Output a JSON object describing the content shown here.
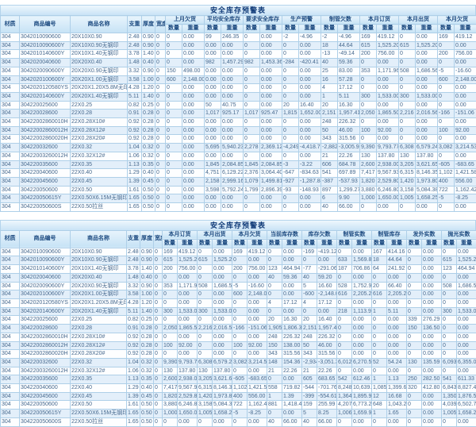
{
  "colors": {
    "accent_blue": "#c9e3f6",
    "border_blue": "#aecfe8",
    "text_blue": "#47698e",
    "header_text": "#1c4a80",
    "alert_red": "#cf2118",
    "stripe": "#e3effa"
  },
  "top_table": {
    "title": "安全库存预警表",
    "left_headers": [
      "材质",
      "商品编号",
      "商品名称",
      "支重",
      "厚度",
      "宽度"
    ],
    "group_headers": [
      "上月欠货",
      "平均安全库存",
      "要求安全库存",
      "生产预警",
      "制管欠数",
      "本月订货",
      "本月出货",
      "本月欠货"
    ],
    "sub_headers": [
      "数量",
      "重量"
    ],
    "red_rules": {
      "nonzero_red_cols": [
        12,
        13
      ],
      "negative_red_cols": [
        14,
        15
      ]
    },
    "rows": [
      [
        "304",
        "3042010090600",
        "20X10X0.90",
        "2.48",
        "0.90",
        "0",
        "0",
        "0.00",
        "99",
        "246.35",
        "0",
        "0.00",
        "-2",
        "-4.96",
        "-2",
        "-4.96",
        "169",
        "419.12",
        "0",
        "0.00",
        "169",
        "419.12"
      ],
      [
        "304",
        "3042010090600Y",
        "20X10X0.90无钢印",
        "2.48",
        "0.90",
        "0",
        "0",
        "0.00",
        "0.00",
        "0.00",
        "0",
        "0.00",
        "0",
        "0.00",
        "18",
        "44.64",
        "615",
        "1,525.20",
        "615",
        "1,525.20",
        "0",
        "0.00"
      ],
      [
        "304",
        "3042010140600Y",
        "20X10X1.40无钢印",
        "3.78",
        "1.40",
        "0",
        "0",
        "0.00",
        "0.00",
        "0.00",
        "0",
        "0.00",
        "0",
        "0.00",
        "-13",
        "-49.14",
        "200",
        "756.00",
        "0",
        "0.00",
        "200",
        "756.00"
      ],
      [
        "304",
        "3042020040600",
        "20X20X0.40",
        "1.48",
        "0.40",
        "0",
        "0",
        "0.00",
        "982",
        "1,457.29",
        "982",
        "1,453.36",
        "-284",
        "-420.41",
        "40",
        "59.36",
        "0",
        "0.00",
        "0",
        "0.00",
        "0",
        "0.00"
      ],
      [
        "304",
        "3042020090600Y",
        "20X20X0.90无钢印",
        "3.32",
        "0.90",
        "0",
        "150",
        "498.00",
        "0.00",
        "0.00",
        "0",
        "0.00",
        "0",
        "0.00",
        "25",
        "83.00",
        "353",
        "1,171.96",
        "508",
        "1,686.56",
        "-5",
        "-16.60"
      ],
      [
        "304",
        "3042020100600Y",
        "20X20X1.00无钢印",
        "3.58",
        "1.00",
        "0",
        "600",
        "2,148.00",
        "0.00",
        "0.00",
        "0",
        "0.00",
        "0",
        "0.00",
        "16",
        "57.28",
        "0",
        "0.00",
        "0",
        "0.00",
        "600",
        "2,148.00"
      ],
      [
        "304",
        "3042020120580YS",
        "20X20X1.20X5.8M无印拉丝",
        "4.28",
        "1.20",
        "0",
        "0",
        "0.00",
        "0.00",
        "0.00",
        "0",
        "0.00",
        "0",
        "0.00",
        "4",
        "17.12",
        "0",
        "0.00",
        "0",
        "0.00",
        "0",
        "0.00"
      ],
      [
        "304",
        "3042020140600Y",
        "20X20X1.40无钢印",
        "5.11",
        "1.40",
        "0",
        "0",
        "0.00",
        "0.00",
        "0.00",
        "0",
        "0.00",
        "0",
        "0.00",
        "1",
        "5.11",
        "300",
        "1,533.00",
        "300",
        "1,533.00",
        "0",
        "0.00"
      ],
      [
        "304",
        "304220025600",
        "22X0.25",
        "0.82",
        "0.25",
        "0",
        "0",
        "0.00",
        "50",
        "40.75",
        "0",
        "0.00",
        "20",
        "16.40",
        "20",
        "16.30",
        "0",
        "0.00",
        "0",
        "0.00",
        "0",
        "0.00"
      ],
      [
        "304",
        "304220028600",
        "22X0.28",
        "0.91",
        "0.28",
        "0",
        "0",
        "0.00",
        "1,017",
        "925.17",
        "1,017",
        "925.47",
        "1,815",
        "1,652.00",
        "2,151",
        "1,957.41",
        "2,050",
        "1,865.50",
        "2,216",
        "2,016.56",
        "-166",
        "-151.06"
      ],
      [
        "304",
        "30422002860010H",
        "22X0.28X10#",
        "0.92",
        "0.28",
        "0",
        "0",
        "0.00",
        "0.00",
        "0.00",
        "0",
        "0.00",
        "0",
        "0.00",
        "248",
        "226.32",
        "0",
        "0.00",
        "0",
        "0.00",
        "0",
        "0.00"
      ],
      [
        "304",
        "30422002860012H",
        "22X0.28X12#",
        "0.92",
        "0.28",
        "0",
        "0",
        "0.00",
        "0.00",
        "0.00",
        "0",
        "0.00",
        "0",
        "0.00",
        "50",
        "46.00",
        "100",
        "92.00",
        "0",
        "0.00",
        "100",
        "92.00"
      ],
      [
        "304",
        "30422002860020H",
        "22X0.28X20#",
        "0.92",
        "0.28",
        "0",
        "0",
        "0.00",
        "0.00",
        "0.00",
        "0",
        "0.00",
        "0",
        "0.00",
        "343",
        "315.56",
        "0",
        "0.00",
        "0",
        "0.00",
        "0",
        "0.00"
      ],
      [
        "304",
        "304220032600",
        "22X0.32",
        "1.04",
        "0.32",
        "0",
        "0",
        "0.00",
        "5,695",
        "5,940.23",
        "2,278",
        "2,369.12",
        "-4,249",
        "-4,418.75",
        "-2,882",
        "-3,005.93",
        "9,390",
        "9,793.77",
        "6,308",
        "6,579.24",
        "3,082",
        "3,214.53"
      ],
      [
        "304",
        "30422003260012H",
        "22X0.32X12#",
        "1.06",
        "0.32",
        "0",
        "0",
        "0.00",
        "0.00",
        "0.00",
        "0",
        "0.00",
        "0",
        "0.00",
        "21",
        "22.26",
        "130",
        "137.80",
        "130",
        "137.80",
        "0",
        "0.00"
      ],
      [
        "304",
        "304220035600",
        "22X0.35",
        "1.13",
        "0.35",
        "0",
        "0",
        "0.00",
        "1,845",
        "2,084.85",
        "1,845",
        "2,084.85",
        "-3",
        "-3.22",
        "606",
        "684.78",
        "2,600",
        "2,938.00",
        "3,205",
        "3,621.65",
        "-605",
        "-683.65"
      ],
      [
        "304",
        "304220040600",
        "22X0.40",
        "1.29",
        "0.40",
        "0",
        "0",
        "0.00",
        "4,751",
        "6,129.22",
        "2,376",
        "3,064.40",
        "-647",
        "-834.63",
        "541",
        "697.89",
        "7,417",
        "9,567.93",
        "6,315",
        "8,146.35",
        "1,102",
        "1,421.58"
      ],
      [
        "304",
        "304220045600",
        "22X0.45",
        "1.39",
        "0.45",
        "0",
        "0",
        "0.00",
        "2,158",
        "2,999.16",
        "1,079",
        "1,499.81",
        "-927",
        "-1,287.84",
        "-387",
        "-537.93",
        "1,820",
        "2,529.80",
        "1,420",
        "1,973.80",
        "400",
        "556.00"
      ],
      [
        "304",
        "304220050600",
        "22X0.50",
        "1.61",
        "0.50",
        "0",
        "0",
        "0.00",
        "3,598",
        "5,792.24",
        "1,799",
        "2,896.39",
        "-93",
        "-148.93",
        "897",
        "1,299.27",
        "3,880",
        "6,246.80",
        "3,158",
        "5,084.38",
        "722",
        "1,162.42"
      ],
      [
        "304",
        "304220050615Y",
        "22X0.50X6.15M无钢印",
        "1.65",
        "0.50",
        "0",
        "0",
        "0.00",
        "0.00",
        "0.00",
        "0",
        "0.00",
        "0",
        "0.00",
        "6",
        "9.90",
        "1,000",
        "1,650.00",
        "1,005",
        "1,658.25",
        "-5",
        "-8.25"
      ],
      [
        "304",
        "304220050600S",
        "22X0.50拉丝",
        "1.65",
        "0.50",
        "0",
        "0",
        "0.00",
        "0.00",
        "0.00",
        "0",
        "0.00",
        "0",
        "0.00",
        "40",
        "66.00",
        "0",
        "0.00",
        "0",
        "0.00",
        "0",
        "0.00"
      ]
    ]
  },
  "bottom_table": {
    "title": "安全库存预警表",
    "left_headers": [
      "材质",
      "商品编号",
      "商品名称",
      "支重",
      "厚度",
      "宽度"
    ],
    "group_headers": [
      "本月订货",
      "本月出货",
      "本月欠货",
      "当前库存数",
      "库存欠数",
      "制管实数",
      "制管库存",
      "发外实数",
      "抛光实数"
    ],
    "sub_headers": [
      "数量",
      "重量"
    ],
    "red_rules": {
      "nonzero_red_cols": [],
      "negative_red_cols": [
        14,
        15
      ]
    },
    "rows": [
      [
        "304",
        "3042010090600",
        "20X10X0.90",
        "2.48",
        "0.90",
        "0",
        "169",
        "419.12",
        "0",
        "0.00",
        "169",
        "419.12",
        "0",
        "0.00",
        "-169",
        "-419.12",
        "0",
        "0.00",
        "167",
        "414.16",
        "0",
        "0.00",
        "0",
        "0.00"
      ],
      [
        "304",
        "3042010090600Y",
        "20X10X0.90无钢印",
        "2.48",
        "0.90",
        "0",
        "615",
        "1,525.20",
        "615",
        "1,525.20",
        "0",
        "0.00",
        "0",
        "0.00",
        "0",
        "0.00",
        "633",
        "1,569.84",
        "18",
        "44.64",
        "0",
        "0.00",
        "615",
        "1,525.20"
      ],
      [
        "304",
        "3042010140600Y",
        "20X10X1.40无钢印",
        "3.78",
        "1.40",
        "0",
        "200",
        "756.00",
        "0",
        "0.00",
        "200",
        "756.00",
        "123",
        "464.94",
        "-77",
        "-291.06",
        "187",
        "706.86",
        "64",
        "241.92",
        "0",
        "0.00",
        "123",
        "464.94"
      ],
      [
        "304",
        "3042020040600",
        "20X20X0.40",
        "1.48",
        "0.40",
        "0",
        "0",
        "0.00",
        "0",
        "0.00",
        "0",
        "0.00",
        "40",
        "59.36",
        "40",
        "59.20",
        "0",
        "0.00",
        "0",
        "0.00",
        "0",
        "0.00",
        "0",
        "0.00"
      ],
      [
        "304",
        "3042020090600Y",
        "20X20X0.90无钢印",
        "3.32",
        "0.90",
        "0",
        "353",
        "1,171.96",
        "508",
        "1,686.56",
        "-5",
        "-16.60",
        "0",
        "0.00",
        "5",
        "16.60",
        "528",
        "1,752.96",
        "20",
        "66.40",
        "0",
        "0.00",
        "508",
        "1,686.56"
      ],
      [
        "304",
        "3042020100600Y",
        "20X20X1.00无钢印",
        "3.58",
        "1.00",
        "0",
        "0",
        "0.00",
        "0",
        "0.00",
        "600",
        "2,148.00",
        "0",
        "0.00",
        "-600",
        "-2,148.00",
        "616",
        "2,205.28",
        "616",
        "2,205.28",
        "0",
        "0.00",
        "0",
        "0.00"
      ],
      [
        "304",
        "3042020120580YS",
        "20X20X1.20X5.8M无印拉丝",
        "4.28",
        "1.20",
        "0",
        "0",
        "0.00",
        "0",
        "0.00",
        "0",
        "0.00",
        "4",
        "17.12",
        "4",
        "17.12",
        "0",
        "0.00",
        "0",
        "0.00",
        "0",
        "0.00",
        "0",
        "0.00"
      ],
      [
        "304",
        "3042020140600Y",
        "20X20X1.40无钢印",
        "5.11",
        "1.40",
        "0",
        "300",
        "1,533.00",
        "300",
        "1,533.00",
        "0",
        "0.00",
        "0",
        "0.00",
        "0",
        "0.00",
        "218",
        "1,113.98",
        "1",
        "5.11",
        "0",
        "0.00",
        "300",
        "1,533.00"
      ],
      [
        "304",
        "304220025600",
        "22X0.25",
        "0.82",
        "0.25",
        "0",
        "0",
        "0.00",
        "0",
        "0.00",
        "0",
        "0.00",
        "20",
        "16.30",
        "20",
        "16.40",
        "0",
        "0.00",
        "0",
        "0.00",
        "339",
        "276.29",
        "0",
        "0.00"
      ],
      [
        "304",
        "304220028600",
        "22X0.28",
        "0.91",
        "0.28",
        "0",
        "2,050",
        "1,865.50",
        "2,216",
        "2,016.56",
        "-166",
        "-151.06",
        "1,905",
        "1,806.35",
        "2,151",
        "1,957.41",
        "0",
        "0.00",
        "0",
        "0.00",
        "150",
        "136.50",
        "0",
        "0.00"
      ],
      [
        "304",
        "30422002860010H",
        "22X0.28X10#",
        "0.92",
        "0.28",
        "0",
        "0",
        "0.00",
        "0",
        "0.00",
        "0",
        "0.00",
        "248",
        "226.32",
        "248",
        "226.32",
        "0",
        "0.00",
        "0",
        "0.00",
        "0",
        "0.00",
        "0",
        "0.00"
      ],
      [
        "304",
        "30422002860012H",
        "22X0.28X12#",
        "0.92",
        "0.28",
        "0",
        "100",
        "92.00",
        "0",
        "0.00",
        "100",
        "92.00",
        "150",
        "138.00",
        "50",
        "46.00",
        "0",
        "0.00",
        "0",
        "0.00",
        "0",
        "0.00",
        "0",
        "0.00"
      ],
      [
        "304",
        "30422002860020H",
        "22X0.28X20#",
        "0.92",
        "0.28",
        "0",
        "0",
        "0.00",
        "0",
        "0.00",
        "0",
        "0.00",
        "343",
        "315.56",
        "343",
        "315.56",
        "0",
        "0.00",
        "0",
        "0.00",
        "0",
        "0.00",
        "0",
        "0.00"
      ],
      [
        "304",
        "304220032600",
        "22X0.32",
        "1.04",
        "0.32",
        "0",
        "9,390",
        "9,793.77",
        "6,308",
        "6,579.24",
        "3,082",
        "3,214.53",
        "148",
        "154.36",
        "-2,934",
        "-3,051.36",
        "6,012",
        "6,270.52",
        "52",
        "54.24",
        "130",
        "135.59",
        "6,093",
        "6,355.00"
      ],
      [
        "304",
        "30422003260012H",
        "22X0.32X12#",
        "1.06",
        "0.32",
        "0",
        "130",
        "137.80",
        "130",
        "137.80",
        "0",
        "0.00",
        "21",
        "22.26",
        "21",
        "22.26",
        "0",
        "0.00",
        "0",
        "0.00",
        "0",
        "0.00",
        "0",
        "0.00"
      ],
      [
        "304",
        "304220035600",
        "22X0.35",
        "1.13",
        "0.35",
        "0",
        "2,600",
        "2,938.00",
        "3,205",
        "3,621.65",
        "-605",
        "-683.65",
        "0",
        "0.00",
        "605",
        "683.65",
        "542",
        "612.46",
        "1",
        "1.13",
        "250",
        "282.50",
        "541",
        "611.33"
      ],
      [
        "304",
        "304220040600",
        "22X0.40",
        "1.29",
        "0.40",
        "0",
        "7,417",
        "9,567.93",
        "6,315",
        "8,146.35",
        "1,102",
        "1,421.58",
        "558",
        "719.82",
        "-544",
        "-701.76",
        "8,248",
        "10,639.92",
        "1,085",
        "1,399.65",
        "320",
        "412.80",
        "6,843",
        "8,827.47"
      ],
      [
        "304",
        "304220045600",
        "22X0.45",
        "1.39",
        "0.45",
        "0",
        "1,820",
        "2,529.80",
        "1,420",
        "1,973.80",
        "400",
        "556.00",
        "1",
        "1.39",
        "-399",
        "-554.61",
        "1,364",
        "1,895.96",
        "12",
        "16.68",
        "0",
        "0.00",
        "1,350",
        "1,876.50"
      ],
      [
        "304",
        "304220050600",
        "22X0.50",
        "1.61",
        "0.50",
        "0",
        "3,880",
        "6,246.80",
        "3,158",
        "5,084.38",
        "722",
        "1,162.42",
        "881",
        "1,418.41",
        "159",
        "255.99",
        "4,207",
        "6,773.27",
        "648",
        "1,043.28",
        "0",
        "0.00",
        "4,039",
        "6,502.79"
      ],
      [
        "304",
        "304220050615Y",
        "22X0.50X6.15M无钢印",
        "1.65",
        "0.50",
        "0",
        "1,000",
        "1,650.00",
        "1,005",
        "1,658.25",
        "-5",
        "-8.25",
        "0",
        "0.00",
        "5",
        "8.25",
        "1,006",
        "1,659.90",
        "1",
        "1.65",
        "0",
        "0.00",
        "1,005",
        "1,658.25"
      ],
      [
        "304",
        "304220050600S",
        "22X0.50拉丝",
        "1.65",
        "0.50",
        "0",
        "0",
        "0.00",
        "0",
        "0.00",
        "0",
        "0.00",
        "40",
        "66.00",
        "40",
        "66.00",
        "0",
        "0.00",
        "0",
        "0.00",
        "0",
        "0.00",
        "0",
        "0.00"
      ]
    ]
  }
}
